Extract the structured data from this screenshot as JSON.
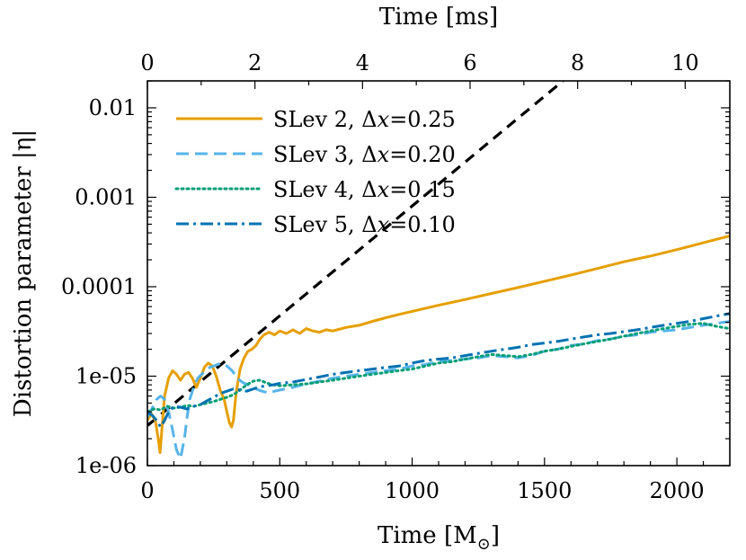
{
  "chart_data": {
    "type": "line",
    "title": "",
    "xlabel": "Time [M",
    "xlabel_sub": "⊙",
    "xlabel_end": "]",
    "x2label": "Time [ms]",
    "ylabel": "Distortion parameter |η|",
    "yscale": "log",
    "xlim": [
      0,
      2200
    ],
    "ylim": [
      1e-06,
      0.02
    ],
    "x2lim": [
      0,
      10.83
    ],
    "x_ticks": [
      0,
      500,
      1000,
      1500,
      2000
    ],
    "x_tick_labels": [
      "0",
      "500",
      "1000",
      "1500",
      "2000"
    ],
    "x2_ticks": [
      0,
      2,
      4,
      6,
      8,
      10
    ],
    "x2_tick_labels": [
      "0",
      "2",
      "4",
      "6",
      "8",
      "10"
    ],
    "y_ticks": [
      1e-06,
      1e-05,
      0.0001,
      0.001,
      0.01
    ],
    "y_tick_labels": [
      "1e-06",
      "1e-05",
      "0.0001",
      "0.001",
      "0.01"
    ],
    "legend_position": "top-left",
    "series": [
      {
        "name": "SLev 2, Δx=0.25",
        "legend_prefix": "SLev 2, Δ",
        "legend_var": "x",
        "legend_value": "=0.25",
        "color": "#E69F00",
        "dash": "",
        "width": 3,
        "x": [
          0,
          15,
          30,
          42,
          48,
          55,
          65,
          80,
          95,
          110,
          125,
          140,
          155,
          170,
          185,
          200,
          215,
          230,
          245,
          260,
          275,
          290,
          300,
          310,
          318,
          325,
          335,
          350,
          365,
          380,
          395,
          410,
          425,
          440,
          460,
          480,
          500,
          525,
          550,
          575,
          600,
          625,
          650,
          675,
          700,
          750,
          800,
          850,
          900,
          950,
          1000,
          1100,
          1200,
          1300,
          1400,
          1500,
          1600,
          1700,
          1800,
          1900,
          2000,
          2100,
          2200
        ],
        "y": [
          3.2e-06,
          3.8e-06,
          3.2e-06,
          1.9e-06,
          1.4e-06,
          2.6e-06,
          6e-06,
          9.5e-06,
          1.15e-05,
          1.05e-05,
          9e-06,
          1.05e-05,
          1.1e-05,
          9.5e-06,
          7.5e-06,
          9.5e-06,
          1.25e-05,
          1.4e-05,
          1.3e-05,
          1e-05,
          7e-06,
          5.5e-06,
          4e-06,
          3e-06,
          2.7e-06,
          3.2e-06,
          6.5e-06,
          1.2e-05,
          1.6e-05,
          1.9e-05,
          2e-05,
          2.2e-05,
          2.6e-05,
          2.9e-05,
          3.1e-05,
          2.9e-05,
          3.2e-05,
          3e-05,
          3.3e-05,
          3e-05,
          3.4e-05,
          3.2e-05,
          3.1e-05,
          3.3e-05,
          3.2e-05,
          3.5e-05,
          3.7e-05,
          4.1e-05,
          4.5e-05,
          4.9e-05,
          5.3e-05,
          6.2e-05,
          7.2e-05,
          8.4e-05,
          9.8e-05,
          0.000115,
          0.000135,
          0.00016,
          0.00019,
          0.00022,
          0.00026,
          0.00031,
          0.00037
        ]
      },
      {
        "name": "SLev 3, Δx=0.20",
        "legend_prefix": "SLev 3, Δ",
        "legend_var": "x",
        "legend_value": "=0.20",
        "color": "#56B4E9",
        "dash": "14 7",
        "width": 3,
        "x": [
          0,
          20,
          35,
          50,
          65,
          80,
          95,
          110,
          125,
          140,
          150,
          160,
          175,
          190,
          205,
          220,
          235,
          250,
          265,
          280,
          300,
          320,
          340,
          360,
          380,
          400,
          420,
          440,
          460,
          480,
          500,
          550,
          600,
          650,
          700,
          750,
          800,
          850,
          900,
          950,
          1000,
          1050,
          1100,
          1150,
          1200,
          1250,
          1300,
          1350,
          1400,
          1450,
          1500,
          1550,
          1600,
          1650,
          1700,
          1750,
          1800,
          1850,
          1900,
          1950,
          2000,
          2050,
          2100,
          2150,
          2200
        ],
        "y": [
          3.5e-06,
          4.5e-06,
          5.5e-06,
          6e-06,
          5.5e-06,
          4e-06,
          2.5e-06,
          1.5e-06,
          1.2e-06,
          2e-06,
          3.5e-06,
          5.5e-06,
          7.5e-06,
          9.5e-06,
          1.05e-05,
          1.15e-05,
          1.25e-05,
          1.3e-05,
          1.35e-05,
          1.4e-05,
          1.3e-05,
          1.15e-05,
          9.5e-06,
          8.5e-06,
          8e-06,
          7.5e-06,
          7e-06,
          6.7e-06,
          6.5e-06,
          6.8e-06,
          7e-06,
          7.5e-06,
          8.2e-06,
          8.8e-06,
          9.5e-06,
          1e-05,
          1.05e-05,
          1.1e-05,
          1.15e-05,
          1.2e-05,
          1.3e-05,
          1.35e-05,
          1.45e-05,
          1.5e-05,
          1.55e-05,
          1.6e-05,
          1.7e-05,
          1.65e-05,
          1.6e-05,
          1.7e-05,
          1.9e-05,
          2e-05,
          2.2e-05,
          2.3e-05,
          2.5e-05,
          2.6e-05,
          2.8e-05,
          2.9e-05,
          3.1e-05,
          3.2e-05,
          3.3e-05,
          3.5e-05,
          3.7e-05,
          3.9e-05,
          4.1e-05
        ]
      },
      {
        "name": "SLev 4, Δx=0.15",
        "legend_prefix": "SLev 4, Δ",
        "legend_var": "x",
        "legend_value": "=0.15",
        "color": "#009E73",
        "dash": "2 4",
        "width": 3,
        "x": [
          0,
          25,
          50,
          75,
          100,
          125,
          150,
          175,
          200,
          225,
          250,
          275,
          300,
          325,
          350,
          375,
          400,
          425,
          450,
          475,
          500,
          550,
          600,
          650,
          700,
          750,
          800,
          850,
          900,
          950,
          1000,
          1050,
          1100,
          1150,
          1200,
          1250,
          1300,
          1350,
          1400,
          1450,
          1500,
          1550,
          1600,
          1650,
          1700,
          1750,
          1800,
          1850,
          1900,
          1950,
          2000,
          2050,
          2100,
          2150,
          2200
        ],
        "y": [
          4e-06,
          4.3e-06,
          4.2e-06,
          4.6e-06,
          4.4e-06,
          4.5e-06,
          4.7e-06,
          4.6e-06,
          4.8e-06,
          5e-06,
          5.2e-06,
          5.5e-06,
          5.8e-06,
          6.2e-06,
          7e-06,
          8e-06,
          8.8e-06,
          9e-06,
          8.4e-06,
          8e-06,
          7.8e-06,
          8e-06,
          8.2e-06,
          8.6e-06,
          9e-06,
          9.5e-06,
          1e-05,
          1.05e-05,
          1.1e-05,
          1.15e-05,
          1.2e-05,
          1.3e-05,
          1.4e-05,
          1.45e-05,
          1.55e-05,
          1.65e-05,
          1.75e-05,
          1.7e-05,
          1.65e-05,
          1.75e-05,
          1.9e-05,
          2e-05,
          2.15e-05,
          2.3e-05,
          2.45e-05,
          2.6e-05,
          2.8e-05,
          3e-05,
          3.2e-05,
          3.4e-05,
          3.6e-05,
          3.8e-05,
          3.9e-05,
          3.6e-05,
          3.4e-05
        ]
      },
      {
        "name": "SLev 5, Δx=0.10",
        "legend_prefix": "SLev 5, Δ",
        "legend_var": "x",
        "legend_value": "=0.10",
        "color": "#0072B2",
        "dash": "14 5 3 5",
        "width": 3,
        "x": [
          0,
          20,
          35,
          50,
          65,
          80,
          100,
          125,
          150,
          175,
          200,
          225,
          250,
          275,
          300,
          325,
          350,
          375,
          400,
          425,
          450,
          475,
          500,
          550,
          600,
          650,
          700,
          750,
          800,
          850,
          900,
          950,
          1000,
          1050,
          1100,
          1150,
          1200,
          1250,
          1300,
          1350,
          1400,
          1450,
          1500,
          1550,
          1600,
          1650,
          1700,
          1750,
          1800,
          1850,
          1900,
          1950,
          2000,
          2050,
          2100,
          2150,
          2200
        ],
        "y": [
          4e-06,
          3.6e-06,
          3.2e-06,
          2.7e-06,
          3.2e-06,
          4e-06,
          4.6e-06,
          4.5e-06,
          4.3e-06,
          4.6e-06,
          4.8e-06,
          5.3e-06,
          5.8e-06,
          6.4e-06,
          6.8e-06,
          7.2e-06,
          7e-06,
          6.8e-06,
          7.2e-06,
          7.6e-06,
          7.8e-06,
          8e-06,
          8.3e-06,
          8.6e-06,
          9.2e-06,
          9.8e-06,
          1.05e-05,
          1.1e-05,
          1.15e-05,
          1.2e-05,
          1.25e-05,
          1.3e-05,
          1.4e-05,
          1.5e-05,
          1.55e-05,
          1.6e-05,
          1.7e-05,
          1.8e-05,
          1.9e-05,
          2e-05,
          2.1e-05,
          2.25e-05,
          2.35e-05,
          2.45e-05,
          2.6e-05,
          2.75e-05,
          2.9e-05,
          3e-05,
          3.15e-05,
          3.3e-05,
          3.5e-05,
          3.7e-05,
          3.9e-05,
          4.1e-05,
          4.4e-05,
          4.7e-05,
          5e-05
        ]
      }
    ],
    "reference_line": {
      "name": "exponential growth reference",
      "color": "#000000",
      "dash": "12 8",
      "width": 3.2,
      "x": [
        0,
        1570
      ],
      "y": [
        2.8e-06,
        0.02
      ]
    }
  }
}
